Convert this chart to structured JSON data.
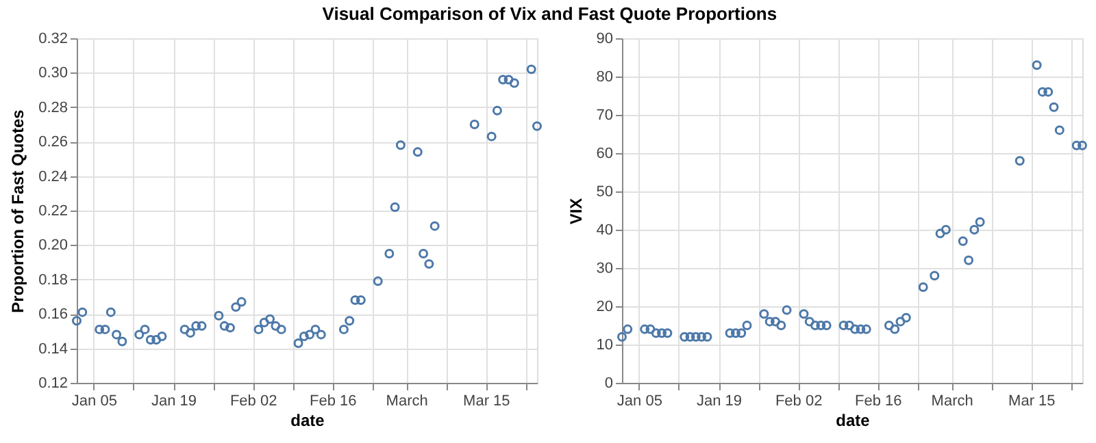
{
  "chart_data": [
    {
      "type": "scatter",
      "title": "Visual Comparison of Vix and Fast Quote Proportions",
      "xlabel": "date",
      "ylabel": "Proportion of Fast Quotes",
      "x": [
        "--01-02",
        "--01-03",
        "--01-06",
        "--01-07",
        "--01-08",
        "--01-09",
        "--01-10",
        "--01-13",
        "--01-14",
        "--01-15",
        "--01-16",
        "--01-17",
        "--01-21",
        "--01-22",
        "--01-23",
        "--01-24",
        "--01-27",
        "--01-28",
        "--01-29",
        "--01-30",
        "--01-31",
        "--02-03",
        "--02-04",
        "--02-05",
        "--02-06",
        "--02-07",
        "--02-10",
        "--02-11",
        "--02-12",
        "--02-13",
        "--02-14",
        "--02-18",
        "--02-19",
        "--02-20",
        "--02-21",
        "--02-24",
        "--02-26",
        "--02-27",
        "--02-28",
        "--03-03",
        "--03-04",
        "--03-05",
        "--03-06",
        "--03-13",
        "--03-16",
        "--03-17",
        "--03-18",
        "--03-19",
        "--03-20",
        "--03-23",
        "--03-24"
      ],
      "series": [
        {
          "color": "#4c78a8",
          "values": [
            0.156,
            0.161,
            0.151,
            0.151,
            0.161,
            0.148,
            0.144,
            0.148,
            0.151,
            0.145,
            0.145,
            0.147,
            0.151,
            0.149,
            0.153,
            0.153,
            0.159,
            0.153,
            0.152,
            0.164,
            0.167,
            0.151,
            0.155,
            0.157,
            0.153,
            0.151,
            0.143,
            0.147,
            0.148,
            0.151,
            0.148,
            0.151,
            0.156,
            0.168,
            0.168,
            0.179,
            0.195,
            0.222,
            0.258,
            0.254,
            0.195,
            0.189,
            0.211,
            0.27,
            0.263,
            0.278,
            0.296,
            0.296,
            0.294,
            0.302,
            0.269
          ]
        }
      ],
      "marker": "circle",
      "grid": true,
      "xlim": [
        "--01-02",
        "--03-24"
      ],
      "xticks": [
        {
          "value": "--01-05",
          "label": "Jan 05"
        },
        {
          "value": "--01-12",
          "label": null
        },
        {
          "value": "--01-19",
          "label": "Jan 19"
        },
        {
          "value": "--01-26",
          "label": null
        },
        {
          "value": "--02-02",
          "label": "Feb 02"
        },
        {
          "value": "--02-09",
          "label": null
        },
        {
          "value": "--02-16",
          "label": "Feb 16"
        },
        {
          "value": "--02-23",
          "label": null
        },
        {
          "value": "--03-01",
          "label": "March"
        },
        {
          "value": "--03-08",
          "label": null
        },
        {
          "value": "--03-15",
          "label": "Mar 15"
        },
        {
          "value": "--03-22",
          "label": null
        }
      ],
      "ylim": [
        0.12,
        0.32
      ],
      "yticks": [
        0.12,
        0.14,
        0.16,
        0.18,
        {
          "value": 0.2,
          "label": "0.20"
        },
        0.22,
        0.24,
        0.26,
        0.28,
        {
          "value": 0.3,
          "label": "0.30"
        },
        0.32
      ]
    },
    {
      "type": "scatter",
      "xlabel": "date",
      "ylabel": "VIX",
      "x": [
        "--01-02",
        "--01-03",
        "--01-06",
        "--01-07",
        "--01-08",
        "--01-09",
        "--01-10",
        "--01-13",
        "--01-14",
        "--01-15",
        "--01-16",
        "--01-17",
        "--01-21",
        "--01-22",
        "--01-23",
        "--01-24",
        "--01-27",
        "--01-28",
        "--01-29",
        "--01-30",
        "--01-31",
        "--02-03",
        "--02-04",
        "--02-05",
        "--02-06",
        "--02-07",
        "--02-10",
        "--02-11",
        "--02-12",
        "--02-13",
        "--02-14",
        "--02-18",
        "--02-19",
        "--02-20",
        "--02-21",
        "--02-24",
        "--02-26",
        "--02-27",
        "--02-28",
        "--03-03",
        "--03-04",
        "--03-05",
        "--03-06",
        "--03-13",
        "--03-16",
        "--03-17",
        "--03-18",
        "--03-19",
        "--03-20",
        "--03-23",
        "--03-24"
      ],
      "series": [
        {
          "color": "#4c78a8",
          "values": [
            12,
            14,
            14,
            14,
            13,
            13,
            13,
            12,
            12,
            12,
            12,
            12,
            13,
            13,
            13,
            15,
            18,
            16,
            16,
            15,
            19,
            18,
            16,
            15,
            15,
            15,
            15,
            15,
            14,
            14,
            14,
            15,
            14,
            16,
            17,
            25,
            28,
            39,
            40,
            37,
            32,
            40,
            42,
            58,
            83,
            76,
            76,
            72,
            66,
            62,
            62
          ]
        }
      ],
      "marker": "circle",
      "grid": true,
      "xlim": [
        "--01-02",
        "--03-24"
      ],
      "xticks": [
        {
          "value": "--01-05",
          "label": "Jan 05"
        },
        {
          "value": "--01-12",
          "label": null
        },
        {
          "value": "--01-19",
          "label": "Jan 19"
        },
        {
          "value": "--01-26",
          "label": null
        },
        {
          "value": "--02-02",
          "label": "Feb 02"
        },
        {
          "value": "--02-09",
          "label": null
        },
        {
          "value": "--02-16",
          "label": "Feb 16"
        },
        {
          "value": "--02-23",
          "label": null
        },
        {
          "value": "--03-01",
          "label": "March"
        },
        {
          "value": "--03-08",
          "label": null
        },
        {
          "value": "--03-15",
          "label": "Mar 15"
        },
        {
          "value": "--03-22",
          "label": null
        }
      ],
      "ylim": [
        0,
        90
      ],
      "yticks": [
        0,
        10,
        20,
        30,
        40,
        50,
        60,
        70,
        80,
        90
      ]
    }
  ]
}
